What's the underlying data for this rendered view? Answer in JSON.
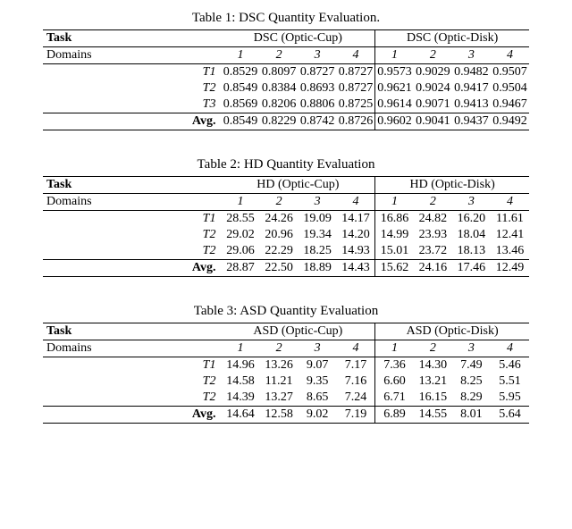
{
  "tables": [
    {
      "caption": "Table 1: DSC Quantity Evaluation.",
      "task_label": "Task",
      "domains_label": "Domains",
      "group_a": "DSC (Optic-Cup)",
      "group_b": "DSC (Optic-Disk)",
      "domain_cols": [
        "1",
        "2",
        "3",
        "4",
        "1",
        "2",
        "3",
        "4"
      ],
      "rows": [
        {
          "label": "T1",
          "vals": [
            "0.8529",
            "0.8097",
            "0.8727",
            "0.8727",
            "0.9573",
            "0.9029",
            "0.9482",
            "0.9507"
          ]
        },
        {
          "label": "T2",
          "vals": [
            "0.8549",
            "0.8384",
            "0.8693",
            "0.8727",
            "0.9621",
            "0.9024",
            "0.9417",
            "0.9504"
          ]
        },
        {
          "label": "T3",
          "vals": [
            "0.8569",
            "0.8206",
            "0.8806",
            "0.8725",
            "0.9614",
            "0.9071",
            "0.9413",
            "0.9467"
          ]
        }
      ],
      "avg_label": "Avg.",
      "avg_vals": [
        "0.8549",
        "0.8229",
        "0.8742",
        "0.8726",
        "0.9602",
        "0.9041",
        "0.9437",
        "0.9492"
      ]
    },
    {
      "caption": "Table 2: HD Quantity Evaluation",
      "task_label": "Task",
      "domains_label": "Domains",
      "group_a": "HD (Optic-Cup)",
      "group_b": "HD (Optic-Disk)",
      "domain_cols": [
        "1",
        "2",
        "3",
        "4",
        "1",
        "2",
        "3",
        "4"
      ],
      "rows": [
        {
          "label": "T1",
          "vals": [
            "28.55",
            "24.26",
            "19.09",
            "14.17",
            "16.86",
            "24.82",
            "16.20",
            "11.61"
          ]
        },
        {
          "label": "T2",
          "vals": [
            "29.02",
            "20.96",
            "19.34",
            "14.20",
            "14.99",
            "23.93",
            "18.04",
            "12.41"
          ]
        },
        {
          "label": "T2",
          "vals": [
            "29.06",
            "22.29",
            "18.25",
            "14.93",
            "15.01",
            "23.72",
            "18.13",
            "13.46"
          ]
        }
      ],
      "avg_label": "Avg.",
      "avg_vals": [
        "28.87",
        "22.50",
        "18.89",
        "14.43",
        "15.62",
        "24.16",
        "17.46",
        "12.49"
      ]
    },
    {
      "caption": "Table 3: ASD Quantity Evaluation",
      "task_label": "Task",
      "domains_label": "Domains",
      "group_a": "ASD (Optic-Cup)",
      "group_b": "ASD (Optic-Disk)",
      "domain_cols": [
        "1",
        "2",
        "3",
        "4",
        "1",
        "2",
        "3",
        "4"
      ],
      "rows": [
        {
          "label": "T1",
          "vals": [
            "14.96",
            "13.26",
            "9.07",
            "7.17",
            "7.36",
            "14.30",
            "7.49",
            "5.46"
          ]
        },
        {
          "label": "T2",
          "vals": [
            "14.58",
            "11.21",
            "9.35",
            "7.16",
            "6.60",
            "13.21",
            "8.25",
            "5.51"
          ]
        },
        {
          "label": "T2",
          "vals": [
            "14.39",
            "13.27",
            "8.65",
            "7.24",
            "6.71",
            "16.15",
            "8.29",
            "5.95"
          ]
        }
      ],
      "avg_label": "Avg.",
      "avg_vals": [
        "14.64",
        "12.58",
        "9.02",
        "7.19",
        "6.89",
        "14.55",
        "8.01",
        "5.64"
      ]
    }
  ]
}
